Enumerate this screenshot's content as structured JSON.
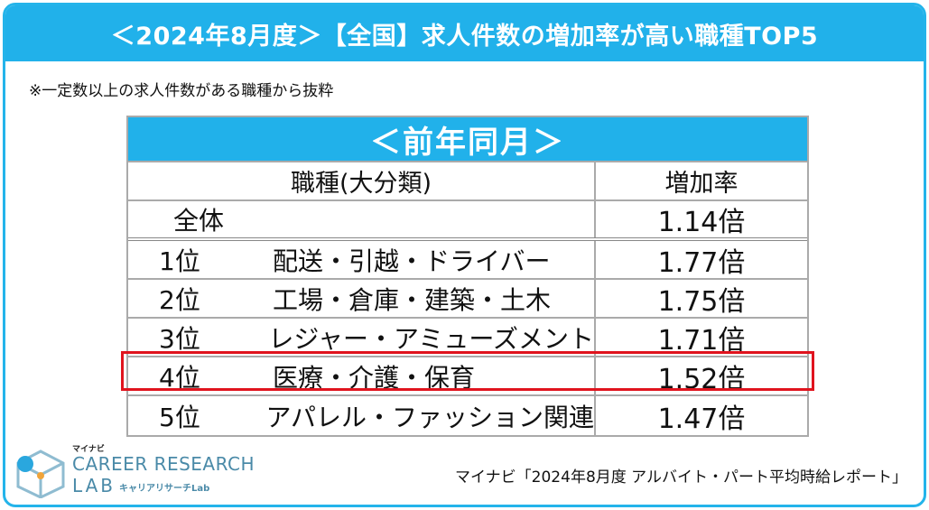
{
  "title": "＜2024年8月度＞【全国】求人件数の増加率が高い職種TOP5",
  "note": "※一定数以上の求人件数がある職種から抜粋",
  "table": {
    "header": "＜前年同月＞",
    "col_occupation": "職種(大分類)",
    "col_rate": "増加率",
    "overall_label": "全体",
    "overall_value": "1.14倍"
  },
  "chart_data": {
    "type": "table",
    "title": "＜2024年8月度＞【全国】求人件数の増加率が高い職種TOP5",
    "comparison": "＜前年同月＞",
    "columns": [
      "職種(大分類)",
      "増加率"
    ],
    "overall": {
      "label": "全体",
      "rate": 1.14,
      "display": "1.14倍"
    },
    "rows": [
      {
        "rank": "1位",
        "occupation": "配送・引越・ドライバー",
        "rate": 1.77,
        "display": "1.77倍"
      },
      {
        "rank": "2位",
        "occupation": "工場・倉庫・建築・土木",
        "rate": 1.75,
        "display": "1.75倍"
      },
      {
        "rank": "3位",
        "occupation": "レジャー・アミューズメント",
        "rate": 1.71,
        "display": "1.71倍"
      },
      {
        "rank": "4位",
        "occupation": "医療・介護・保育",
        "rate": 1.52,
        "display": "1.52倍",
        "highlighted": true
      },
      {
        "rank": "5位",
        "occupation": "アパレル・ファッション関連",
        "rate": 1.47,
        "display": "1.47倍"
      }
    ],
    "highlight_color": "#e0141e",
    "header_color": "#21b1ea"
  },
  "logo": {
    "kana": "マイナビ",
    "line1": "CAREER RESEARCH",
    "line2": "LAB",
    "sub": "キャリアリサーチLab"
  },
  "source": "マイナビ「2024年8月度 アルバイト・パート平均時給レポート」"
}
